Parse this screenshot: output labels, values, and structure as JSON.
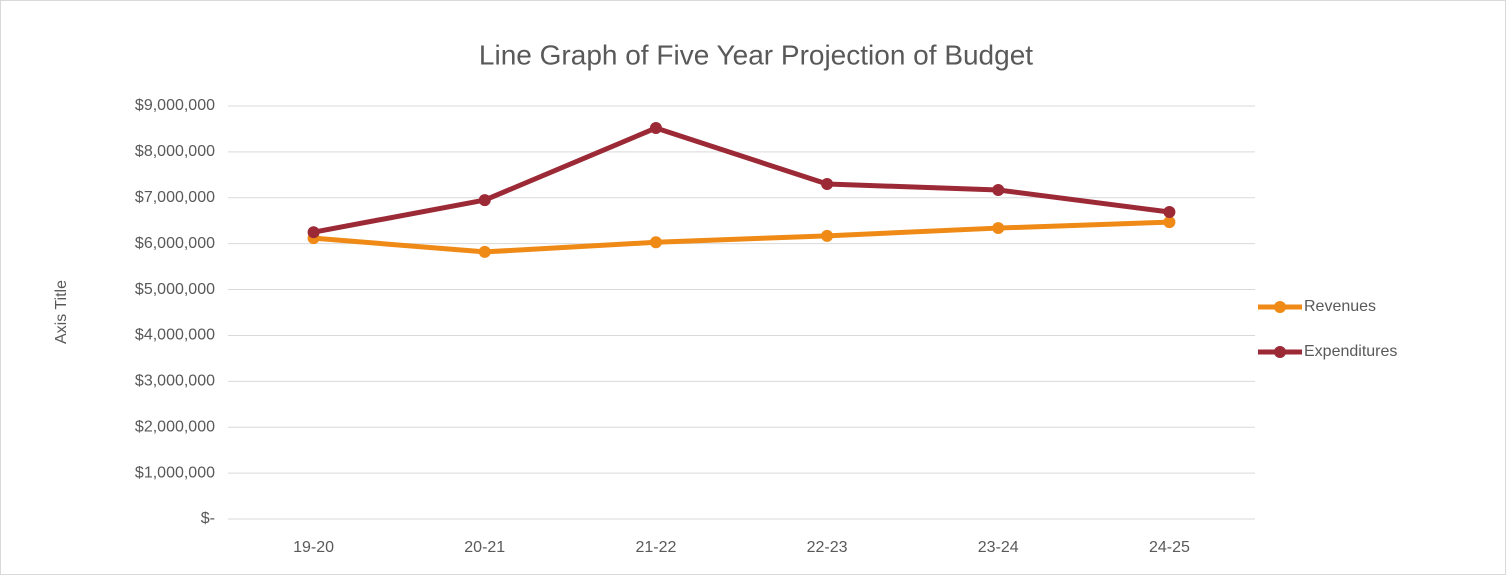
{
  "chart_data": {
    "type": "line",
    "title": "Line Graph of Five Year Projection of Budget",
    "y_axis_label": "Axis Title",
    "categories": [
      "19-20",
      "20-21",
      "21-22",
      "22-23",
      "23-24",
      "24-25"
    ],
    "series": [
      {
        "name": "Revenues",
        "color": "#ef8a17",
        "values": [
          6120000,
          5820000,
          6030000,
          6170000,
          6340000,
          6470000
        ]
      },
      {
        "name": "Expenditures",
        "color": "#9c2a36",
        "values": [
          6250000,
          6950000,
          8520000,
          7300000,
          7170000,
          6690000
        ]
      }
    ],
    "ylim": [
      0,
      9000000
    ],
    "yticks": [
      {
        "value": 0,
        "label": "$-"
      },
      {
        "value": 1000000,
        "label": "$1,000,000"
      },
      {
        "value": 2000000,
        "label": "$2,000,000"
      },
      {
        "value": 3000000,
        "label": "$3,000,000"
      },
      {
        "value": 4000000,
        "label": "$4,000,000"
      },
      {
        "value": 5000000,
        "label": "$5,000,000"
      },
      {
        "value": 6000000,
        "label": "$6,000,000"
      },
      {
        "value": 7000000,
        "label": "$7,000,000"
      },
      {
        "value": 8000000,
        "label": "$8,000,000"
      },
      {
        "value": 9000000,
        "label": "$9,000,000"
      }
    ],
    "grid": true,
    "legend": "right"
  }
}
